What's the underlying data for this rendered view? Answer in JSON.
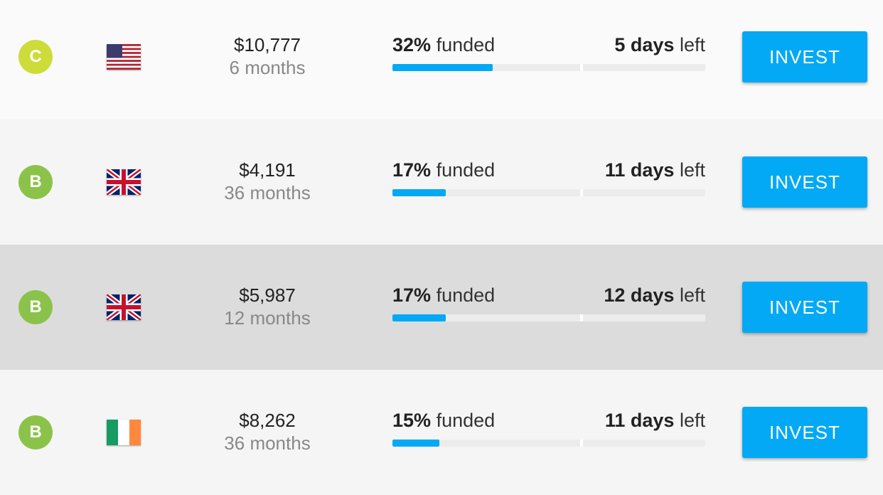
{
  "loans": [
    {
      "grade": "C",
      "amount": "$10,777",
      "term": "6 months",
      "funded": {
        "value": 32,
        "label": "32%"
      },
      "funded_text": "funded",
      "days": "5 days",
      "left_text": "left",
      "button": "INVEST"
    },
    {
      "grade": "B",
      "amount": "$4,191",
      "term": "36 months",
      "funded": {
        "value": 17,
        "label": "17%"
      },
      "funded_text": "funded",
      "days": "11 days",
      "left_text": "left",
      "button": "INVEST"
    },
    {
      "grade": "B",
      "amount": "$5,987",
      "term": "12 months",
      "funded": {
        "value": 17,
        "label": "17%"
      },
      "funded_text": "funded",
      "days": "12 days",
      "left_text": "left",
      "button": "INVEST"
    },
    {
      "grade": "B",
      "amount": "$8,262",
      "term": "36 months",
      "funded": {
        "value": 15,
        "label": "15%"
      },
      "funded_text": "funded",
      "days": "11 days",
      "left_text": "left",
      "button": "INVEST"
    }
  ]
}
